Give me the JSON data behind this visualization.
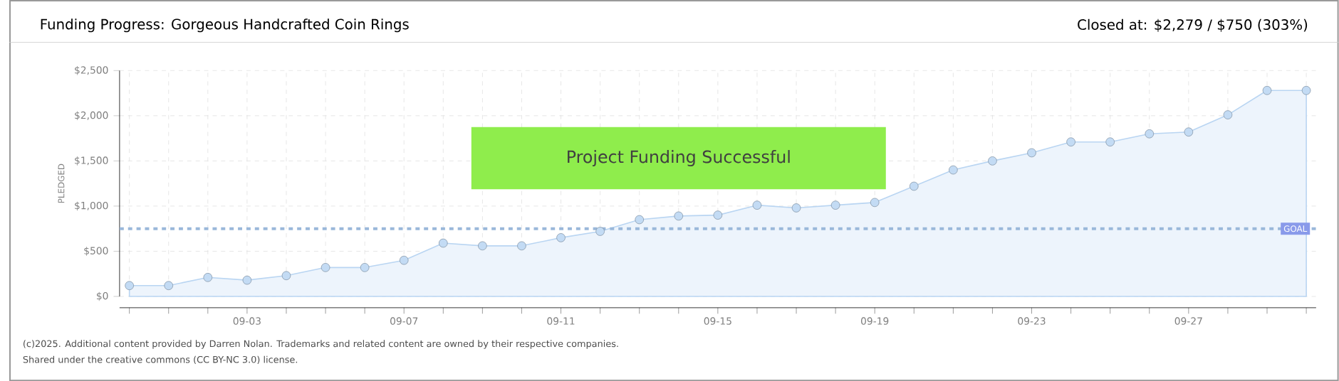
{
  "chart_data": {
    "type": "area",
    "title": "Funding Progress: Gorgeous Handcrafted Coin Rings",
    "subtitle": "Closed at: $2,279 / $750 (303%)",
    "ylabel": "PLEDGED",
    "categories": [
      null,
      null,
      null,
      "09-03",
      null,
      null,
      null,
      "09-07",
      null,
      null,
      null,
      "09-11",
      null,
      null,
      null,
      "09-15",
      null,
      null,
      null,
      "09-19",
      null,
      null,
      null,
      "09-23",
      null,
      null,
      null,
      "09-27",
      null,
      null,
      null
    ],
    "series": [
      {
        "color": "#b9d5f2",
        "values": [
          120,
          120,
          210,
          180,
          230,
          320,
          320,
          400,
          590,
          560,
          560,
          650,
          720,
          850,
          890,
          900,
          1010,
          980,
          1010,
          1040,
          1220,
          1400,
          1500,
          1590,
          1710,
          1710,
          1800,
          1820,
          2010,
          2280,
          2280
        ]
      }
    ],
    "ylim": [
      0,
      2500
    ],
    "yticks": [
      {
        "value": 0,
        "label": "$0"
      },
      {
        "value": 500,
        "label": "$500"
      },
      {
        "value": 1000,
        "label": "$1,000"
      },
      {
        "value": 1500,
        "label": "$1,500"
      },
      {
        "value": 2000,
        "label": "$2,000"
      },
      {
        "value": 2500,
        "label": "$2,500"
      }
    ],
    "grid": true,
    "marker": "circle",
    "ref_lines": [
      {
        "axis": "y",
        "value": 750,
        "label": "GOAL",
        "color": "#9ab8da",
        "line_style": "dashed"
      }
    ],
    "annotations": [
      "Project Funding Successful",
      "(c)2025. Additional content provided by Darren Nolan. Trademarks and related content are owned by their respective companies.",
      "Shared under the creative commons (CC BY-NC 3.0) license."
    ]
  }
}
